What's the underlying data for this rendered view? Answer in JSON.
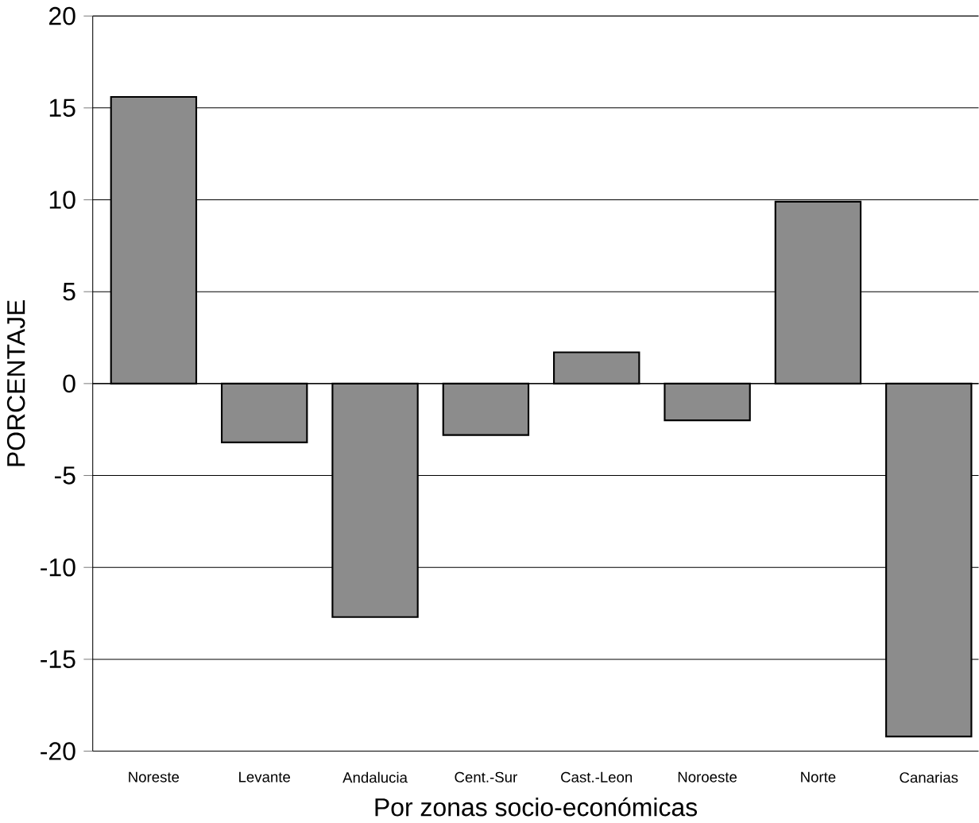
{
  "chart_data": {
    "type": "bar",
    "xlabel": "Por zonas socio-económicas",
    "ylabel": "PORCENTAJE",
    "categories": [
      "Noreste",
      "Levante",
      "Andalucia",
      "Cent.-Sur",
      "Cast.-Leon",
      "Noroeste",
      "Norte",
      "Canarias"
    ],
    "values": [
      15.6,
      -3.2,
      -12.7,
      -2.8,
      1.7,
      -2.0,
      9.9,
      -19.2
    ],
    "color": "#8c8c8c",
    "ylim": [
      -20,
      20
    ],
    "yticks": [
      -20,
      -15,
      -10,
      -5,
      0,
      5,
      10,
      15,
      20
    ],
    "grid": "y"
  }
}
